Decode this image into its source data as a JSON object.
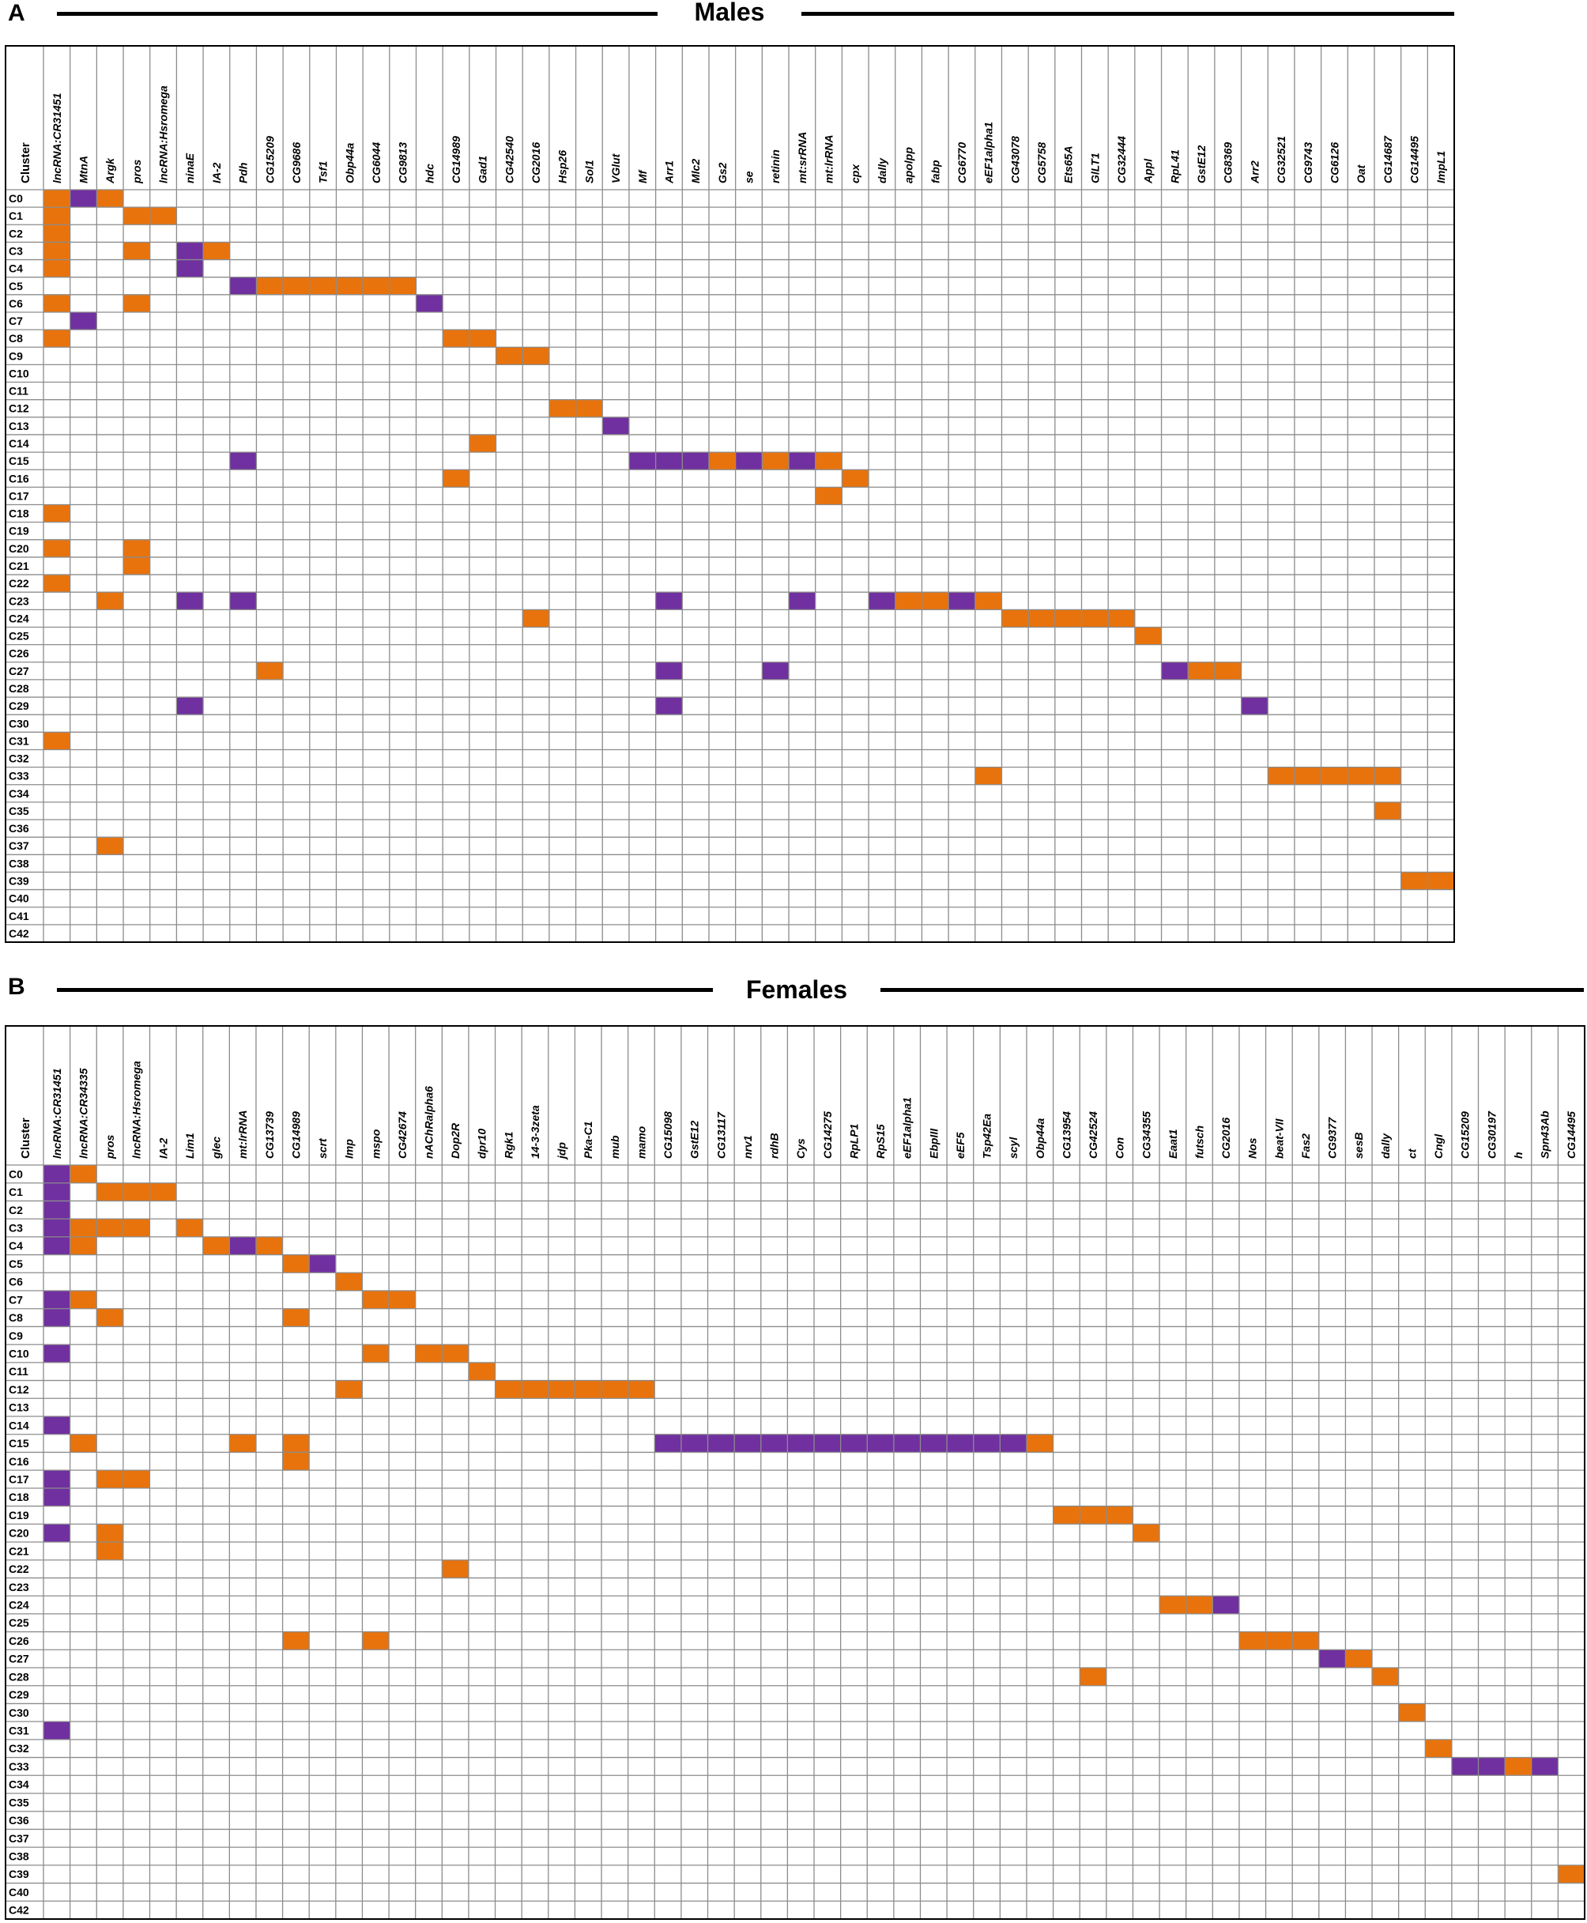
{
  "colors": {
    "orange": "#E8730C",
    "purple": "#7030A0",
    "grid": "#8C8C8C",
    "border": "#000000"
  },
  "chart_data": [
    {
      "type": "table",
      "panel": "A",
      "title": "Males",
      "row_header": "Cluster",
      "rows": [
        "C0",
        "C1",
        "C2",
        "C3",
        "C4",
        "C5",
        "C6",
        "C7",
        "C8",
        "C9",
        "C10",
        "C11",
        "C12",
        "C13",
        "C14",
        "C15",
        "C16",
        "C17",
        "C18",
        "C19",
        "C20",
        "C21",
        "C22",
        "C23",
        "C24",
        "C25",
        "C26",
        "C27",
        "C28",
        "C29",
        "C30",
        "C31",
        "C32",
        "C33",
        "C34",
        "C35",
        "C36",
        "C37",
        "C38",
        "C39",
        "C40",
        "C41",
        "C42"
      ],
      "genes": [
        "lncRNA:CR31451",
        "MtnA",
        "Argk",
        "pros",
        "lncRNA:Hsromega",
        "ninaE",
        "IA-2",
        "Pdh",
        "CG15209",
        "CG9686",
        "Tsf1",
        "Obp44a",
        "CG6044",
        "CG9813",
        "hdc",
        "CG14989",
        "Gad1",
        "CG42540",
        "CG2016",
        "Hsp26",
        "Sol1",
        "VGlut",
        "Mf",
        "Arr1",
        "Mlc2",
        "Gs2",
        "se",
        "retinin",
        "mt:srRNA",
        "mt:lrRNA",
        "cpx",
        "dally",
        "apolpp",
        "fabp",
        "CG6770",
        "eEF1alpha1",
        "CG43078",
        "CG5758",
        "Ets65A",
        "GlLT1",
        "CG32444",
        "Appl",
        "RpL41",
        "GstE12",
        "CG8369",
        "Arr2",
        "CG32521",
        "CG9743",
        "CG6126",
        "Oat",
        "CG14687",
        "CG14495",
        "ImpL1"
      ],
      "cells": [
        {
          "row": 0,
          "col": 0,
          "c": "O"
        },
        {
          "row": 0,
          "col": 1,
          "c": "P"
        },
        {
          "row": 0,
          "col": 2,
          "c": "O"
        },
        {
          "row": 1,
          "col": 0,
          "c": "O"
        },
        {
          "row": 1,
          "col": 3,
          "c": "O"
        },
        {
          "row": 1,
          "col": 4,
          "c": "O"
        },
        {
          "row": 2,
          "col": 0,
          "c": "O"
        },
        {
          "row": 3,
          "col": 0,
          "c": "O"
        },
        {
          "row": 3,
          "col": 3,
          "c": "O"
        },
        {
          "row": 3,
          "col": 5,
          "c": "P"
        },
        {
          "row": 3,
          "col": 6,
          "c": "O"
        },
        {
          "row": 4,
          "col": 0,
          "c": "O"
        },
        {
          "row": 4,
          "col": 5,
          "c": "P"
        },
        {
          "row": 5,
          "col": 7,
          "c": "P"
        },
        {
          "row": 5,
          "col": 8,
          "c": "O"
        },
        {
          "row": 5,
          "col": 9,
          "c": "O"
        },
        {
          "row": 5,
          "col": 10,
          "c": "O"
        },
        {
          "row": 5,
          "col": 11,
          "c": "O"
        },
        {
          "row": 5,
          "col": 12,
          "c": "O"
        },
        {
          "row": 5,
          "col": 13,
          "c": "O"
        },
        {
          "row": 6,
          "col": 0,
          "c": "O"
        },
        {
          "row": 6,
          "col": 3,
          "c": "O"
        },
        {
          "row": 6,
          "col": 14,
          "c": "P"
        },
        {
          "row": 7,
          "col": 1,
          "c": "P"
        },
        {
          "row": 8,
          "col": 0,
          "c": "O"
        },
        {
          "row": 8,
          "col": 15,
          "c": "O"
        },
        {
          "row": 8,
          "col": 16,
          "c": "O"
        },
        {
          "row": 9,
          "col": 17,
          "c": "O"
        },
        {
          "row": 9,
          "col": 18,
          "c": "O"
        },
        {
          "row": 12,
          "col": 19,
          "c": "O"
        },
        {
          "row": 12,
          "col": 20,
          "c": "O"
        },
        {
          "row": 13,
          "col": 21,
          "c": "P"
        },
        {
          "row": 14,
          "col": 16,
          "c": "O"
        },
        {
          "row": 15,
          "col": 7,
          "c": "P"
        },
        {
          "row": 15,
          "col": 22,
          "c": "P"
        },
        {
          "row": 15,
          "col": 23,
          "c": "P"
        },
        {
          "row": 15,
          "col": 24,
          "c": "P"
        },
        {
          "row": 15,
          "col": 25,
          "c": "O"
        },
        {
          "row": 15,
          "col": 26,
          "c": "P"
        },
        {
          "row": 15,
          "col": 27,
          "c": "O"
        },
        {
          "row": 15,
          "col": 28,
          "c": "P"
        },
        {
          "row": 15,
          "col": 29,
          "c": "O"
        },
        {
          "row": 16,
          "col": 15,
          "c": "O"
        },
        {
          "row": 16,
          "col": 30,
          "c": "O"
        },
        {
          "row": 17,
          "col": 29,
          "c": "O"
        },
        {
          "row": 18,
          "col": 0,
          "c": "O"
        },
        {
          "row": 20,
          "col": 0,
          "c": "O"
        },
        {
          "row": 20,
          "col": 3,
          "c": "O"
        },
        {
          "row": 21,
          "col": 3,
          "c": "O"
        },
        {
          "row": 22,
          "col": 0,
          "c": "O"
        },
        {
          "row": 23,
          "col": 2,
          "c": "O"
        },
        {
          "row": 23,
          "col": 5,
          "c": "P"
        },
        {
          "row": 23,
          "col": 7,
          "c": "P"
        },
        {
          "row": 23,
          "col": 23,
          "c": "P"
        },
        {
          "row": 23,
          "col": 28,
          "c": "P"
        },
        {
          "row": 23,
          "col": 31,
          "c": "P"
        },
        {
          "row": 23,
          "col": 32,
          "c": "O"
        },
        {
          "row": 23,
          "col": 33,
          "c": "O"
        },
        {
          "row": 23,
          "col": 34,
          "c": "P"
        },
        {
          "row": 23,
          "col": 35,
          "c": "O"
        },
        {
          "row": 24,
          "col": 18,
          "c": "O"
        },
        {
          "row": 24,
          "col": 36,
          "c": "O"
        },
        {
          "row": 24,
          "col": 37,
          "c": "O"
        },
        {
          "row": 24,
          "col": 38,
          "c": "O"
        },
        {
          "row": 24,
          "col": 39,
          "c": "O"
        },
        {
          "row": 24,
          "col": 40,
          "c": "O"
        },
        {
          "row": 25,
          "col": 41,
          "c": "O"
        },
        {
          "row": 27,
          "col": 8,
          "c": "O"
        },
        {
          "row": 27,
          "col": 23,
          "c": "P"
        },
        {
          "row": 27,
          "col": 27,
          "c": "P"
        },
        {
          "row": 27,
          "col": 42,
          "c": "P"
        },
        {
          "row": 27,
          "col": 43,
          "c": "O"
        },
        {
          "row": 27,
          "col": 44,
          "c": "O"
        },
        {
          "row": 29,
          "col": 5,
          "c": "P"
        },
        {
          "row": 29,
          "col": 23,
          "c": "P"
        },
        {
          "row": 29,
          "col": 45,
          "c": "P"
        },
        {
          "row": 31,
          "col": 0,
          "c": "O"
        },
        {
          "row": 33,
          "col": 35,
          "c": "O"
        },
        {
          "row": 33,
          "col": 46,
          "c": "O"
        },
        {
          "row": 33,
          "col": 47,
          "c": "O"
        },
        {
          "row": 33,
          "col": 48,
          "c": "O"
        },
        {
          "row": 33,
          "col": 49,
          "c": "O"
        },
        {
          "row": 33,
          "col": 50,
          "c": "O"
        },
        {
          "row": 35,
          "col": 50,
          "c": "O"
        },
        {
          "row": 37,
          "col": 2,
          "c": "O"
        },
        {
          "row": 39,
          "col": 51,
          "c": "O"
        },
        {
          "row": 39,
          "col": 52,
          "c": "O"
        }
      ]
    },
    {
      "type": "table",
      "panel": "B",
      "title": "Females",
      "row_header": "Cluster",
      "rows": [
        "C0",
        "C1",
        "C2",
        "C3",
        "C4",
        "C5",
        "C6",
        "C7",
        "C8",
        "C9",
        "C10",
        "C11",
        "C12",
        "C13",
        "C14",
        "C15",
        "C16",
        "C17",
        "C18",
        "C19",
        "C20",
        "C21",
        "C22",
        "C23",
        "C24",
        "C25",
        "C26",
        "C27",
        "C28",
        "C29",
        "C30",
        "C31",
        "C32",
        "C33",
        "C34",
        "C35",
        "C36",
        "C37",
        "C38",
        "C39",
        "C40",
        "C42"
      ],
      "genes": [
        "lncRNA:CR31451",
        "lncRNA:CR34335",
        "pros",
        "lncRNA:Hsromega",
        "IA-2",
        "Lim1",
        "glec",
        "mt:lrRNA",
        "CG13739",
        "CG14989",
        "scrt",
        "Imp",
        "mspo",
        "CG42674",
        "nAChRalpha6",
        "Dop2R",
        "dpr10",
        "Rgk1",
        "14-3-3zeta",
        "jdp",
        "Pka-C1",
        "mub",
        "mamo",
        "CG15098",
        "GstE12",
        "CG13117",
        "nrv1",
        "rdhB",
        "Cys",
        "CG14275",
        "RpLP1",
        "RpS15",
        "eEF1alpha1",
        "EbpIII",
        "eEF5",
        "Tsp42Ea",
        "scyl",
        "Obp44a",
        "CG13954",
        "CG42524",
        "Con",
        "CG34355",
        "Eaat1",
        "futsch",
        "CG2016",
        "Nos",
        "beat-VII",
        "Fas2",
        "CG9377",
        "sesB",
        "dally",
        "ct",
        "Cngl",
        "CG15209",
        "CG30197",
        "h",
        "Spn43Ab",
        "CG14495"
      ],
      "cells": [
        {
          "row": 0,
          "col": 0,
          "c": "P"
        },
        {
          "row": 0,
          "col": 1,
          "c": "O"
        },
        {
          "row": 1,
          "col": 0,
          "c": "P"
        },
        {
          "row": 1,
          "col": 2,
          "c": "O"
        },
        {
          "row": 1,
          "col": 3,
          "c": "O"
        },
        {
          "row": 1,
          "col": 4,
          "c": "O"
        },
        {
          "row": 2,
          "col": 0,
          "c": "P"
        },
        {
          "row": 3,
          "col": 0,
          "c": "P"
        },
        {
          "row": 3,
          "col": 1,
          "c": "O"
        },
        {
          "row": 3,
          "col": 2,
          "c": "O"
        },
        {
          "row": 3,
          "col": 3,
          "c": "O"
        },
        {
          "row": 3,
          "col": 5,
          "c": "O"
        },
        {
          "row": 4,
          "col": 0,
          "c": "P"
        },
        {
          "row": 4,
          "col": 1,
          "c": "O"
        },
        {
          "row": 4,
          "col": 6,
          "c": "O"
        },
        {
          "row": 4,
          "col": 7,
          "c": "P"
        },
        {
          "row": 4,
          "col": 8,
          "c": "O"
        },
        {
          "row": 5,
          "col": 9,
          "c": "O"
        },
        {
          "row": 5,
          "col": 10,
          "c": "P"
        },
        {
          "row": 6,
          "col": 11,
          "c": "O"
        },
        {
          "row": 7,
          "col": 0,
          "c": "P"
        },
        {
          "row": 7,
          "col": 1,
          "c": "O"
        },
        {
          "row": 7,
          "col": 12,
          "c": "O"
        },
        {
          "row": 7,
          "col": 13,
          "c": "O"
        },
        {
          "row": 8,
          "col": 0,
          "c": "P"
        },
        {
          "row": 8,
          "col": 2,
          "c": "O"
        },
        {
          "row": 8,
          "col": 9,
          "c": "O"
        },
        {
          "row": 10,
          "col": 0,
          "c": "P"
        },
        {
          "row": 10,
          "col": 12,
          "c": "O"
        },
        {
          "row": 10,
          "col": 14,
          "c": "O"
        },
        {
          "row": 10,
          "col": 15,
          "c": "O"
        },
        {
          "row": 11,
          "col": 16,
          "c": "O"
        },
        {
          "row": 12,
          "col": 11,
          "c": "O"
        },
        {
          "row": 12,
          "col": 17,
          "c": "O"
        },
        {
          "row": 12,
          "col": 18,
          "c": "O"
        },
        {
          "row": 12,
          "col": 19,
          "c": "O"
        },
        {
          "row": 12,
          "col": 20,
          "c": "O"
        },
        {
          "row": 12,
          "col": 21,
          "c": "O"
        },
        {
          "row": 12,
          "col": 22,
          "c": "O"
        },
        {
          "row": 14,
          "col": 0,
          "c": "P"
        },
        {
          "row": 15,
          "col": 1,
          "c": "O"
        },
        {
          "row": 15,
          "col": 7,
          "c": "O"
        },
        {
          "row": 15,
          "col": 9,
          "c": "O"
        },
        {
          "row": 15,
          "col": 23,
          "c": "P"
        },
        {
          "row": 15,
          "col": 24,
          "c": "P"
        },
        {
          "row": 15,
          "col": 25,
          "c": "P"
        },
        {
          "row": 15,
          "col": 26,
          "c": "P"
        },
        {
          "row": 15,
          "col": 27,
          "c": "P"
        },
        {
          "row": 15,
          "col": 28,
          "c": "P"
        },
        {
          "row": 15,
          "col": 29,
          "c": "P"
        },
        {
          "row": 15,
          "col": 30,
          "c": "P"
        },
        {
          "row": 15,
          "col": 31,
          "c": "P"
        },
        {
          "row": 15,
          "col": 32,
          "c": "P"
        },
        {
          "row": 15,
          "col": 33,
          "c": "P"
        },
        {
          "row": 15,
          "col": 34,
          "c": "P"
        },
        {
          "row": 15,
          "col": 35,
          "c": "P"
        },
        {
          "row": 15,
          "col": 36,
          "c": "P"
        },
        {
          "row": 15,
          "col": 37,
          "c": "O"
        },
        {
          "row": 16,
          "col": 9,
          "c": "O"
        },
        {
          "row": 17,
          "col": 0,
          "c": "P"
        },
        {
          "row": 17,
          "col": 2,
          "c": "O"
        },
        {
          "row": 17,
          "col": 3,
          "c": "O"
        },
        {
          "row": 18,
          "col": 0,
          "c": "P"
        },
        {
          "row": 19,
          "col": 38,
          "c": "O"
        },
        {
          "row": 19,
          "col": 39,
          "c": "O"
        },
        {
          "row": 19,
          "col": 40,
          "c": "O"
        },
        {
          "row": 20,
          "col": 0,
          "c": "P"
        },
        {
          "row": 20,
          "col": 2,
          "c": "O"
        },
        {
          "row": 20,
          "col": 41,
          "c": "O"
        },
        {
          "row": 21,
          "col": 2,
          "c": "O"
        },
        {
          "row": 22,
          "col": 15,
          "c": "O"
        },
        {
          "row": 24,
          "col": 42,
          "c": "O"
        },
        {
          "row": 24,
          "col": 43,
          "c": "O"
        },
        {
          "row": 24,
          "col": 44,
          "c": "P"
        },
        {
          "row": 26,
          "col": 9,
          "c": "O"
        },
        {
          "row": 26,
          "col": 12,
          "c": "O"
        },
        {
          "row": 26,
          "col": 45,
          "c": "O"
        },
        {
          "row": 26,
          "col": 46,
          "c": "O"
        },
        {
          "row": 26,
          "col": 47,
          "c": "O"
        },
        {
          "row": 27,
          "col": 48,
          "c": "P"
        },
        {
          "row": 27,
          "col": 49,
          "c": "O"
        },
        {
          "row": 28,
          "col": 39,
          "c": "O"
        },
        {
          "row": 28,
          "col": 50,
          "c": "O"
        },
        {
          "row": 30,
          "col": 51,
          "c": "O"
        },
        {
          "row": 31,
          "col": 0,
          "c": "P"
        },
        {
          "row": 32,
          "col": 52,
          "c": "O"
        },
        {
          "row": 33,
          "col": 53,
          "c": "P"
        },
        {
          "row": 33,
          "col": 54,
          "c": "P"
        },
        {
          "row": 33,
          "col": 55,
          "c": "O"
        },
        {
          "row": 33,
          "col": 56,
          "c": "P"
        },
        {
          "row": 39,
          "col": 57,
          "c": "O"
        }
      ]
    }
  ]
}
